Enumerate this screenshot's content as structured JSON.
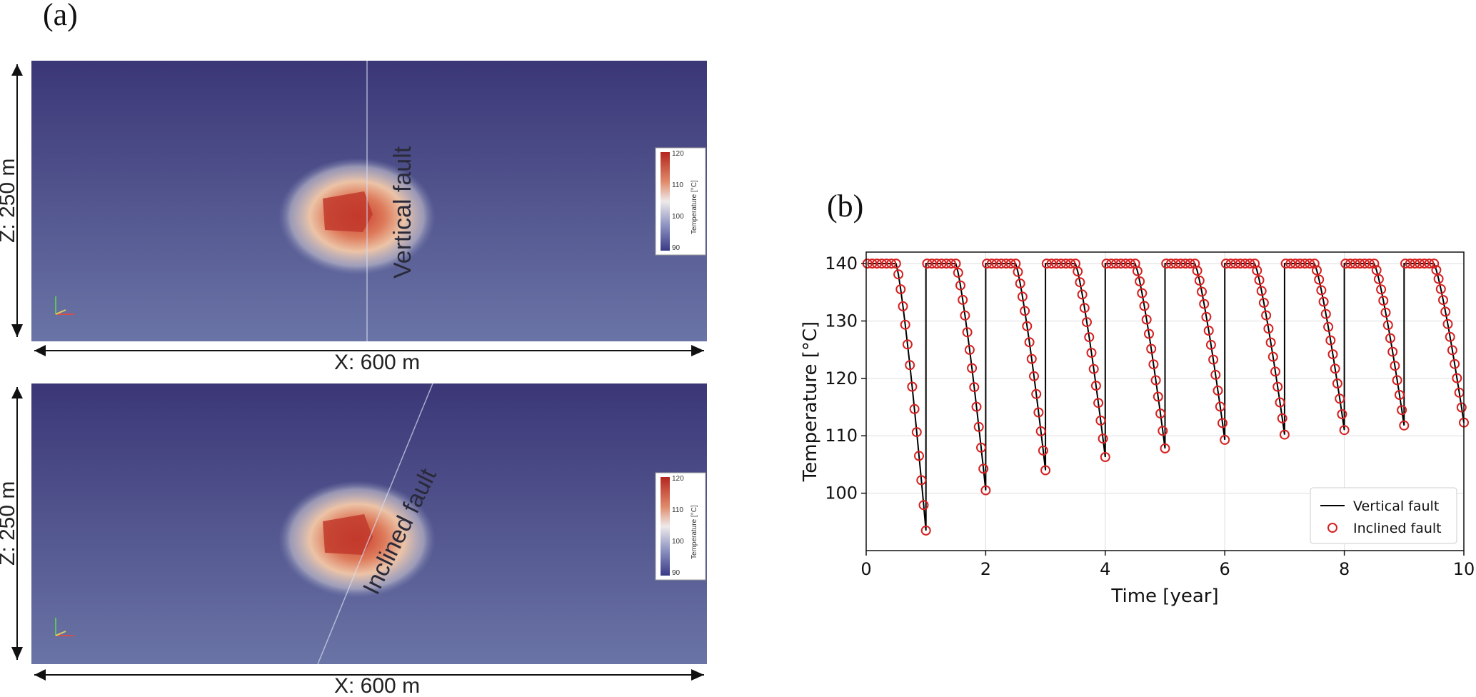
{
  "figure": {
    "panel_a_label": "(a)",
    "panel_b_label": "(b)"
  },
  "panel_a": {
    "top": {
      "z_label": "Z: 250 m",
      "x_label": "X: 600 m",
      "fault_label": "Vertical fault",
      "colorbar": {
        "title": "Temperature [°C]",
        "ticks": [
          "120",
          "110",
          "100",
          "90"
        ]
      }
    },
    "bottom": {
      "z_label": "Z: 250 m",
      "x_label": "X: 600 m",
      "fault_label": "Inclined fault",
      "colorbar": {
        "title": "Temperature [°C]",
        "ticks": [
          "120",
          "110",
          "100",
          "90"
        ]
      }
    },
    "colors": {
      "background_top": "#3b3777",
      "background_bottom": "#6a74a6",
      "hot": "#c23a2b",
      "warm": "#e8b896"
    }
  },
  "chart_data": {
    "type": "line",
    "xlabel": "Time [year]",
    "ylabel": "Temperature [°C]",
    "xlim": [
      0,
      10
    ],
    "ylim": [
      90,
      142
    ],
    "xticks": [
      0,
      2,
      4,
      6,
      8,
      10
    ],
    "yticks": [
      100,
      110,
      120,
      130,
      140
    ],
    "grid": true,
    "legend_position": "bottom-right",
    "cycle": {
      "plateau_temp": 140,
      "plateau_years": 0.5,
      "steps": 13,
      "curvature": 1.25
    },
    "cycles": [
      {
        "start": 0,
        "end_temp": 93.5
      },
      {
        "start": 1,
        "end_temp": 100.5
      },
      {
        "start": 2,
        "end_temp": 104.0
      },
      {
        "start": 3,
        "end_temp": 106.3
      },
      {
        "start": 4,
        "end_temp": 107.8
      },
      {
        "start": 5,
        "end_temp": 109.3
      },
      {
        "start": 6,
        "end_temp": 110.2
      },
      {
        "start": 7,
        "end_temp": 111.0
      },
      {
        "start": 8,
        "end_temp": 111.8
      },
      {
        "start": 9,
        "end_temp": 112.3
      }
    ],
    "series": [
      {
        "name": "Vertical fault",
        "style": "line",
        "color": "#000000"
      },
      {
        "name": "Inclined fault",
        "style": "open-circle",
        "color": "#d62020"
      }
    ]
  }
}
